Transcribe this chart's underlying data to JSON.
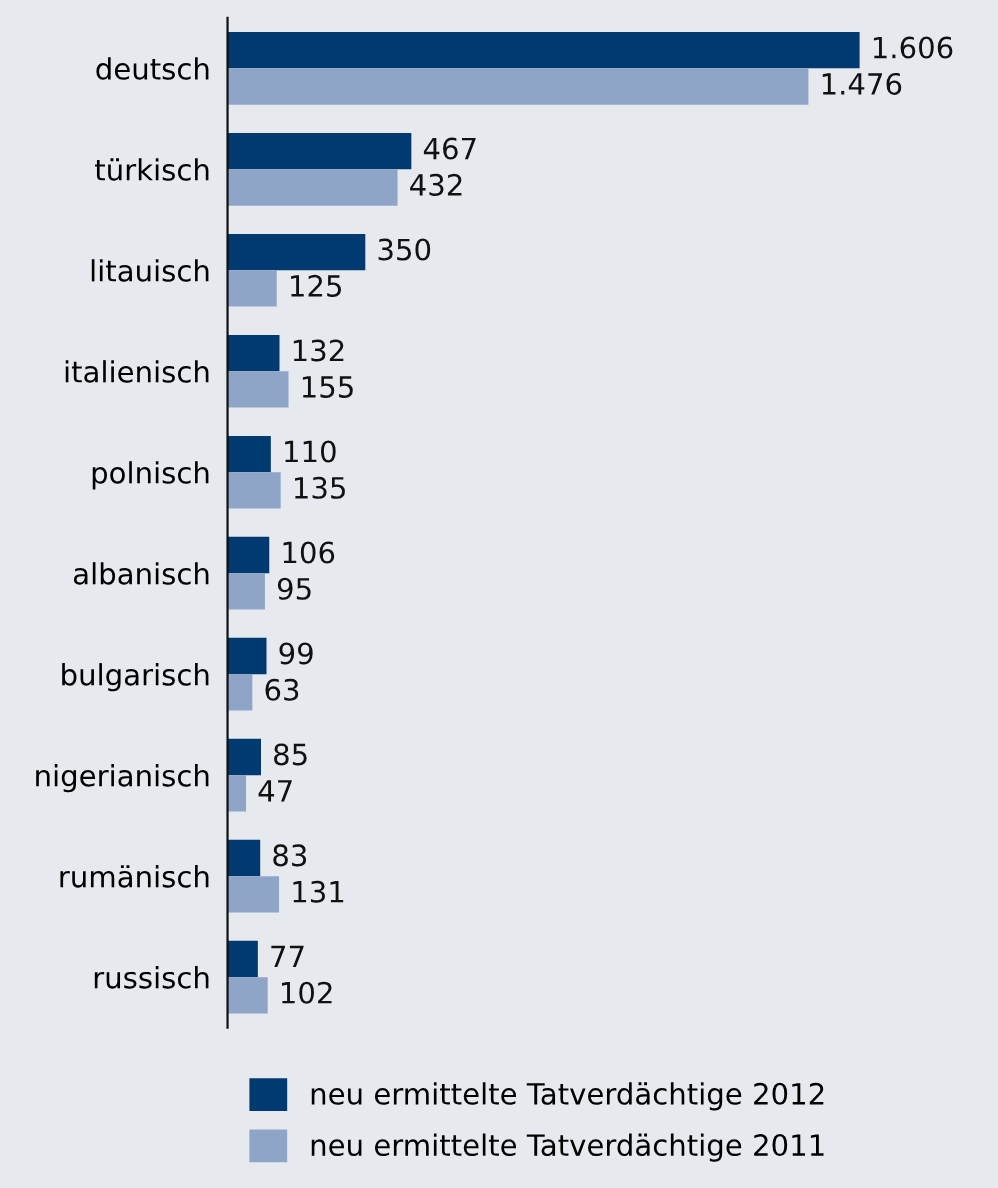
{
  "chart_data": {
    "type": "bar",
    "orientation": "horizontal",
    "categories": [
      "deutsch",
      "türkisch",
      "litauisch",
      "italienisch",
      "polnisch",
      "albanisch",
      "bulgarisch",
      "nigerianisch",
      "rumänisch",
      "russisch"
    ],
    "series": [
      {
        "name": "neu ermittelte Tatverdächtige 2012",
        "color": "#003a70",
        "values": [
          1606,
          467,
          350,
          132,
          110,
          106,
          99,
          85,
          83,
          77
        ],
        "value_labels": [
          "1.606",
          "467",
          "350",
          "132",
          "110",
          "106",
          "99",
          "85",
          "83",
          "77"
        ]
      },
      {
        "name": "neu ermittelte Tatverdächtige 2011",
        "color": "#8fa5c8",
        "values": [
          1476,
          432,
          125,
          155,
          135,
          95,
          63,
          47,
          131,
          102
        ],
        "value_labels": [
          "1.476",
          "432",
          "125",
          "155",
          "135",
          "95",
          "63",
          "47",
          "131",
          "102"
        ]
      }
    ],
    "legend": "bottom",
    "grid": false
  }
}
